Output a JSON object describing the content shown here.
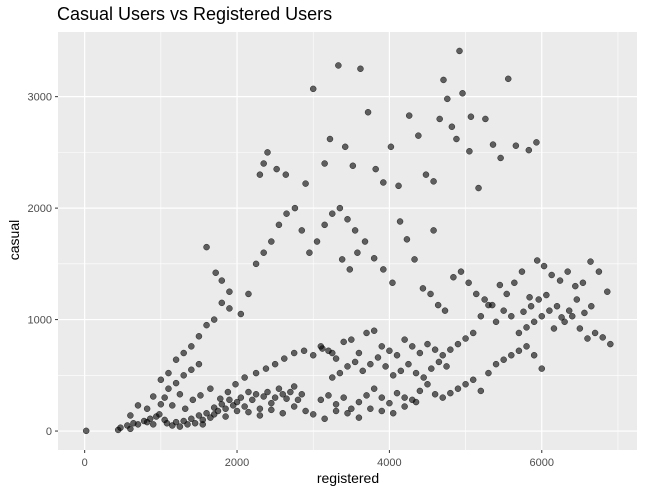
{
  "chart_data": {
    "type": "scatter",
    "title": "Casual Users vs Registered Users",
    "xlabel": "registered",
    "ylabel": "casual",
    "xlim": [
      -350,
      7250
    ],
    "ylim": [
      -170,
      3580
    ],
    "x_ticks": [
      0,
      2000,
      4000,
      6000
    ],
    "y_ticks": [
      0,
      1000,
      2000,
      3000
    ],
    "x_tick_labels": [
      "0",
      "2000",
      "4000",
      "6000"
    ],
    "y_tick_labels": [
      "0",
      "1000",
      "2000",
      "3000"
    ],
    "grid": true,
    "panel_color": "#ebebeb",
    "grid_color": "#ffffff",
    "point_color": "#000000",
    "point_alpha": 0.6,
    "points": [
      [
        20,
        2
      ],
      [
        440,
        10
      ],
      [
        470,
        30
      ],
      [
        560,
        50
      ],
      [
        600,
        20
      ],
      [
        640,
        70
      ],
      [
        700,
        60
      ],
      [
        780,
        90
      ],
      [
        820,
        80
      ],
      [
        860,
        110
      ],
      [
        900,
        60
      ],
      [
        940,
        130
      ],
      [
        980,
        150
      ],
      [
        1050,
        100
      ],
      [
        1080,
        70
      ],
      [
        1150,
        50
      ],
      [
        1200,
        80
      ],
      [
        1250,
        40
      ],
      [
        1300,
        90
      ],
      [
        1350,
        60
      ],
      [
        1400,
        110
      ],
      [
        1450,
        70
      ],
      [
        1500,
        140
      ],
      [
        1550,
        100
      ],
      [
        1600,
        160
      ],
      [
        1650,
        120
      ],
      [
        1700,
        210
      ],
      [
        1750,
        180
      ],
      [
        1800,
        240
      ],
      [
        1850,
        200
      ],
      [
        1900,
        280
      ],
      [
        1950,
        230
      ],
      [
        2000,
        260
      ],
      [
        2050,
        300
      ],
      [
        2100,
        220
      ],
      [
        2150,
        350
      ],
      [
        2200,
        280
      ],
      [
        2250,
        330
      ],
      [
        2300,
        200
      ],
      [
        2350,
        310
      ],
      [
        2400,
        350
      ],
      [
        2450,
        250
      ],
      [
        2500,
        300
      ],
      [
        2550,
        380
      ],
      [
        2600,
        330
      ],
      [
        2650,
        290
      ],
      [
        2700,
        350
      ],
      [
        2750,
        400
      ],
      [
        2800,
        280
      ],
      [
        2850,
        330
      ],
      [
        1550,
        60
      ],
      [
        1700,
        150
      ],
      [
        1850,
        130
      ],
      [
        2000,
        180
      ],
      [
        2150,
        170
      ],
      [
        2300,
        140
      ],
      [
        2450,
        190
      ],
      [
        2600,
        160
      ],
      [
        2750,
        220
      ],
      [
        2900,
        180
      ],
      [
        1050,
        300
      ],
      [
        1150,
        230
      ],
      [
        1250,
        330
      ],
      [
        1320,
        200
      ],
      [
        1420,
        280
      ],
      [
        1520,
        320
      ],
      [
        1650,
        380
      ],
      [
        1780,
        290
      ],
      [
        1880,
        350
      ],
      [
        1980,
        420
      ],
      [
        2100,
        480
      ],
      [
        2250,
        520
      ],
      [
        2380,
        560
      ],
      [
        2500,
        600
      ],
      [
        2620,
        650
      ],
      [
        2750,
        700
      ],
      [
        2880,
        720
      ],
      [
        3000,
        680
      ],
      [
        3120,
        740
      ],
      [
        3250,
        700
      ],
      [
        600,
        140
      ],
      [
        700,
        230
      ],
      [
        820,
        200
      ],
      [
        900,
        310
      ],
      [
        1000,
        240
      ],
      [
        1100,
        380
      ],
      [
        1200,
        430
      ],
      [
        1300,
        500
      ],
      [
        1400,
        550
      ],
      [
        1500,
        600
      ],
      [
        1000,
        460
      ],
      [
        1100,
        520
      ],
      [
        1200,
        640
      ],
      [
        1300,
        700
      ],
      [
        1400,
        760
      ],
      [
        1500,
        850
      ],
      [
        1600,
        950
      ],
      [
        1700,
        1000
      ],
      [
        1800,
        1150
      ],
      [
        1900,
        1250
      ],
      [
        1600,
        1650
      ],
      [
        1720,
        1420
      ],
      [
        1800,
        1350
      ],
      [
        1900,
        1100
      ],
      [
        2050,
        1050
      ],
      [
        2150,
        1230
      ],
      [
        2250,
        1500
      ],
      [
        2350,
        1600
      ],
      [
        2450,
        1700
      ],
      [
        2550,
        1850
      ],
      [
        2650,
        1950
      ],
      [
        2760,
        2000
      ],
      [
        2850,
        1800
      ],
      [
        2950,
        1600
      ],
      [
        3050,
        1700
      ],
      [
        3150,
        1850
      ],
      [
        3250,
        1950
      ],
      [
        3350,
        2000
      ],
      [
        3450,
        1900
      ],
      [
        3550,
        1800
      ],
      [
        2300,
        2300
      ],
      [
        2350,
        2400
      ],
      [
        2400,
        2500
      ],
      [
        2520,
        2350
      ],
      [
        2640,
        2300
      ],
      [
        2900,
        2220
      ],
      [
        3000,
        3070
      ],
      [
        3150,
        2400
      ],
      [
        3220,
        2620
      ],
      [
        3330,
        3280
      ],
      [
        3420,
        2550
      ],
      [
        3520,
        2380
      ],
      [
        3620,
        3250
      ],
      [
        3720,
        2860
      ],
      [
        3820,
        2350
      ],
      [
        3920,
        2230
      ],
      [
        4020,
        2550
      ],
      [
        4120,
        2200
      ],
      [
        4260,
        2830
      ],
      [
        4380,
        2650
      ],
      [
        4480,
        2300
      ],
      [
        4580,
        2240
      ],
      [
        4660,
        2800
      ],
      [
        4710,
        3150
      ],
      [
        4760,
        2980
      ],
      [
        4820,
        2730
      ],
      [
        4880,
        2620
      ],
      [
        4920,
        3410
      ],
      [
        4960,
        3030
      ],
      [
        5070,
        2820
      ],
      [
        5170,
        2180
      ],
      [
        5260,
        2800
      ],
      [
        5360,
        2570
      ],
      [
        5460,
        2450
      ],
      [
        5560,
        3160
      ],
      [
        5660,
        2560
      ],
      [
        5830,
        2520
      ],
      [
        5930,
        2590
      ],
      [
        5050,
        2510
      ],
      [
        4580,
        1800
      ],
      [
        3380,
        1540
      ],
      [
        3480,
        1450
      ],
      [
        3580,
        1600
      ],
      [
        3680,
        1700
      ],
      [
        3800,
        1550
      ],
      [
        3920,
        1450
      ],
      [
        4040,
        1330
      ],
      [
        4140,
        1880
      ],
      [
        4230,
        1720
      ],
      [
        4330,
        1540
      ],
      [
        4440,
        1280
      ],
      [
        4540,
        1230
      ],
      [
        4640,
        1130
      ],
      [
        4730,
        1080
      ],
      [
        4840,
        1380
      ],
      [
        4940,
        1430
      ],
      [
        5040,
        1330
      ],
      [
        5140,
        1230
      ],
      [
        5250,
        1180
      ],
      [
        5350,
        1130
      ],
      [
        5450,
        1310
      ],
      [
        5540,
        1230
      ],
      [
        5640,
        1330
      ],
      [
        5740,
        1430
      ],
      [
        5840,
        1200
      ],
      [
        5940,
        1530
      ],
      [
        6030,
        1480
      ],
      [
        6130,
        1400
      ],
      [
        6240,
        1350
      ],
      [
        6340,
        1430
      ],
      [
        6440,
        1300
      ],
      [
        6540,
        1330
      ],
      [
        6640,
        1520
      ],
      [
        6750,
        1430
      ],
      [
        6860,
        1250
      ],
      [
        6900,
        780
      ],
      [
        6800,
        840
      ],
      [
        6700,
        880
      ],
      [
        6600,
        830
      ],
      [
        6500,
        920
      ],
      [
        6400,
        1030
      ],
      [
        6300,
        980
      ],
      [
        6200,
        1120
      ],
      [
        6100,
        1080
      ],
      [
        6000,
        1030
      ],
      [
        5900,
        980
      ],
      [
        5800,
        930
      ],
      [
        5700,
        880
      ],
      [
        5600,
        1030
      ],
      [
        5500,
        1080
      ],
      [
        5400,
        980
      ],
      [
        5300,
        1130
      ],
      [
        5200,
        1030
      ],
      [
        5100,
        880
      ],
      [
        5000,
        830
      ],
      [
        4900,
        780
      ],
      [
        4800,
        730
      ],
      [
        4700,
        680
      ],
      [
        4600,
        730
      ],
      [
        4500,
        780
      ],
      [
        3100,
        760
      ],
      [
        3200,
        720
      ],
      [
        3300,
        650
      ],
      [
        3400,
        800
      ],
      [
        3500,
        820
      ],
      [
        3600,
        700
      ],
      [
        3700,
        880
      ],
      [
        3800,
        900
      ],
      [
        3900,
        760
      ],
      [
        4000,
        720
      ],
      [
        4100,
        680
      ],
      [
        4200,
        820
      ],
      [
        4300,
        760
      ],
      [
        4400,
        700
      ],
      [
        3250,
        480
      ],
      [
        3350,
        520
      ],
      [
        3450,
        580
      ],
      [
        3550,
        620
      ],
      [
        3650,
        540
      ],
      [
        3750,
        600
      ],
      [
        3850,
        660
      ],
      [
        3950,
        580
      ],
      [
        4050,
        500
      ],
      [
        4150,
        540
      ],
      [
        4250,
        600
      ],
      [
        4350,
        520
      ],
      [
        4450,
        480
      ],
      [
        4550,
        560
      ],
      [
        4650,
        620
      ],
      [
        4750,
        580
      ],
      [
        3100,
        280
      ],
      [
        3200,
        320
      ],
      [
        3300,
        240
      ],
      [
        3400,
        300
      ],
      [
        3500,
        200
      ],
      [
        3600,
        260
      ],
      [
        3700,
        320
      ],
      [
        3800,
        380
      ],
      [
        3900,
        300
      ],
      [
        4000,
        250
      ],
      [
        4100,
        340
      ],
      [
        4200,
        300
      ],
      [
        4300,
        280
      ],
      [
        4400,
        360
      ],
      [
        4500,
        420
      ],
      [
        4600,
        330
      ],
      [
        4700,
        300
      ],
      [
        4800,
        340
      ],
      [
        4900,
        380
      ],
      [
        5000,
        420
      ],
      [
        5100,
        460
      ],
      [
        5200,
        360
      ],
      [
        5300,
        520
      ],
      [
        5400,
        600
      ],
      [
        5500,
        640
      ],
      [
        5600,
        680
      ],
      [
        5700,
        720
      ],
      [
        5800,
        760
      ],
      [
        5900,
        680
      ],
      [
        6000,
        560
      ],
      [
        3000,
        150
      ],
      [
        3150,
        110
      ],
      [
        3300,
        180
      ],
      [
        3450,
        160
      ],
      [
        3600,
        120
      ],
      [
        3750,
        200
      ],
      [
        3900,
        180
      ],
      [
        4050,
        160
      ],
      [
        4200,
        220
      ],
      [
        4350,
        260
      ],
      [
        6650,
        1120
      ],
      [
        6560,
        1060
      ],
      [
        6460,
        1180
      ],
      [
        6360,
        1080
      ],
      [
        6260,
        1020
      ],
      [
        6160,
        920
      ],
      [
        6060,
        1220
      ],
      [
        5960,
        1180
      ],
      [
        5860,
        1120
      ],
      [
        5760,
        1070
      ]
    ]
  }
}
